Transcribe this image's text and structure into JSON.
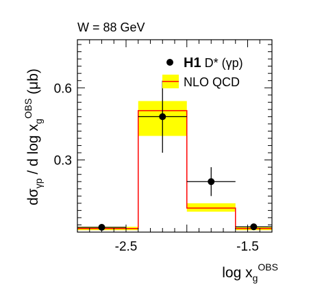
{
  "chart_data": {
    "type": "bar",
    "header": "W = 88 GeV",
    "xlabel": {
      "main": "log x",
      "sub": "g",
      "sup": "OBS"
    },
    "ylabel": {
      "p1": "dσ",
      "sub1": "γp",
      "p2": " / d log x",
      "sub2": "g",
      "sup2": "OBS",
      "p3": " (μb)"
    },
    "xlim": [
      -2.9,
      -1.3
    ],
    "ylim": [
      0,
      0.8
    ],
    "xticks": [
      -2.5,
      -1.5
    ],
    "xtick_labels": [
      "-2.5",
      "-1.5"
    ],
    "yticks": [
      0.3,
      0.6
    ],
    "ytick_labels": [
      "0.3",
      "0.6"
    ],
    "legend_position": "top-right",
    "legend": {
      "data": {
        "bold": "H1",
        "rest": " D* (γp)"
      },
      "theory": "NLO QCD"
    },
    "colors": {
      "band": "#ffff00",
      "line": "#ff0000",
      "data": "#000000"
    },
    "series": [
      {
        "name": "NLO QCD",
        "bins": [
          {
            "xlo": -2.9,
            "xhi": -2.4,
            "y": 0.015,
            "ylo": 0.008,
            "yhi": 0.022
          },
          {
            "xlo": -2.4,
            "xhi": -2.0,
            "y": 0.505,
            "ylo": 0.4,
            "yhi": 0.545
          },
          {
            "xlo": -2.0,
            "xhi": -1.6,
            "y": 0.1,
            "ylo": 0.085,
            "yhi": 0.12
          },
          {
            "xlo": -1.6,
            "xhi": -1.3,
            "y": 0.015,
            "ylo": 0.008,
            "yhi": 0.022
          }
        ]
      },
      {
        "name": "H1 D* (γp)",
        "points": [
          {
            "x": -2.7,
            "y": 0.02,
            "xerr_lo": 0.2,
            "xerr_hi": 0.2,
            "yerr": 0.004
          },
          {
            "x": -2.2,
            "y": 0.48,
            "xerr_lo": 0.2,
            "xerr_hi": 0.2,
            "yerr": 0.15
          },
          {
            "x": -1.8,
            "y": 0.21,
            "xerr_lo": 0.2,
            "xerr_hi": 0.2,
            "yerr": 0.06
          },
          {
            "x": -1.45,
            "y": 0.022,
            "xerr_lo": 0.15,
            "xerr_hi": 0.15,
            "yerr": 0.004
          }
        ]
      }
    ]
  }
}
